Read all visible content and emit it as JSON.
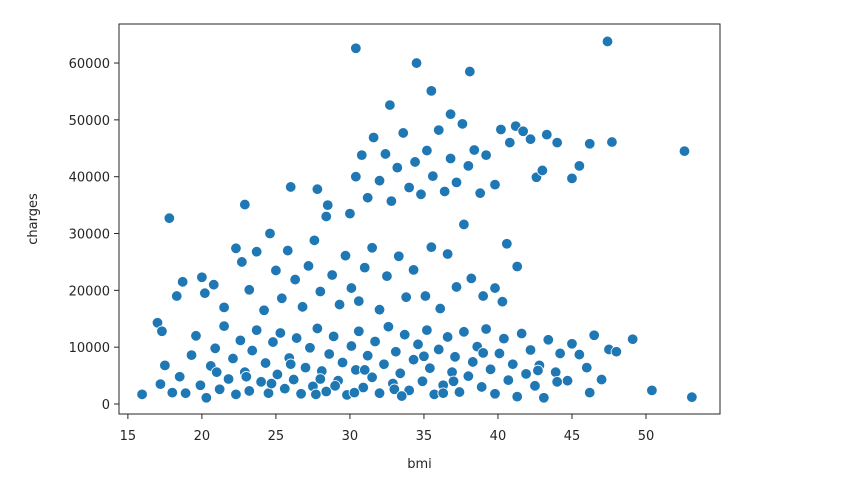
{
  "chart_data": {
    "type": "scatter",
    "xlabel": "bmi",
    "ylabel": "charges",
    "xlim": [
      14.4,
      55.0
    ],
    "ylim": [
      -1760,
      66870
    ],
    "xticks": [
      15,
      20,
      25,
      30,
      35,
      40,
      45,
      50
    ],
    "yticks": [
      0,
      10000,
      20000,
      30000,
      40000,
      50000,
      60000
    ],
    "grid": false,
    "series": [
      {
        "color": "#1f77b4",
        "x": [
          17.2,
          17.5,
          18.0,
          18.5,
          18.9,
          19.3,
          19.6,
          19.9,
          20.3,
          20.6,
          20.9,
          21.2,
          21.5,
          21.8,
          22.1,
          22.3,
          22.6,
          22.9,
          23.2,
          23.4,
          23.7,
          24.0,
          24.3,
          24.5,
          24.8,
          25.1,
          25.3,
          25.6,
          25.9,
          26.2,
          26.4,
          26.7,
          27.0,
          27.3,
          27.5,
          27.8,
          28.1,
          28.4,
          28.6,
          28.9,
          29.2,
          29.5,
          29.8,
          30.1,
          30.4,
          30.6,
          30.9,
          31.2,
          31.5,
          31.7,
          32.0,
          32.3,
          32.6,
          32.9,
          33.1,
          33.4,
          33.7,
          34.0,
          34.3,
          34.6,
          34.9,
          35.2,
          35.4,
          35.7,
          36.0,
          36.3,
          36.6,
          36.9,
          37.1,
          37.4,
          37.7,
          38.0,
          38.3,
          38.6,
          38.9,
          39.2,
          39.5,
          39.8,
          40.1,
          40.4,
          40.7,
          41.0,
          41.3,
          41.6,
          41.9,
          42.2,
          42.5,
          42.8,
          43.1,
          43.4,
          43.9,
          44.2,
          44.7,
          45.0,
          45.5,
          46.0,
          46.2,
          46.5,
          47.0,
          47.5,
          48.0,
          42.7,
          44.0,
          23.0,
          26.0,
          29.0,
          31.0,
          33.0,
          35.0,
          37.0,
          39.0,
          27.7,
          30.3,
          33.5,
          36.3,
          21.0,
          24.7,
          28.0,
          17.8,
          18.3,
          18.7,
          20.0,
          20.2,
          20.8,
          21.5,
          22.3,
          22.7,
          23.2,
          23.7,
          24.2,
          24.6,
          25.0,
          25.4,
          25.8,
          26.3,
          26.8,
          27.2,
          27.6,
          28.0,
          28.4,
          28.8,
          29.3,
          29.7,
          30.1,
          30.6,
          31.0,
          31.5,
          32.0,
          32.5,
          33.3,
          33.8,
          34.3,
          35.1,
          35.5,
          36.1,
          36.6,
          37.2,
          37.7,
          38.2,
          39.0,
          39.8,
          40.6,
          41.3,
          40.3,
          26.0,
          27.8,
          28.5,
          30.0,
          30.4,
          30.8,
          31.2,
          31.6,
          32.0,
          32.4,
          32.8,
          33.2,
          33.6,
          34.0,
          34.4,
          34.8,
          35.2,
          35.6,
          36.0,
          36.4,
          36.8,
          37.2,
          37.6,
          38.0,
          38.4,
          38.8,
          39.2,
          39.8,
          40.2,
          40.8,
          41.2,
          41.7,
          42.2,
          42.6,
          43.0,
          43.3,
          44.0,
          45.0,
          45.5,
          46.2,
          47.7,
          52.6,
          30.4,
          34.5,
          35.5,
          38.1,
          47.4,
          32.7,
          36.8,
          22.9,
          15.96,
          17.0,
          17.3,
          53.1,
          50.4,
          49.1
        ],
        "y": [
          3500,
          6800,
          2000,
          4800,
          1900,
          8600,
          12000,
          3300,
          1100,
          6700,
          9800,
          2600,
          13700,
          4400,
          8000,
          1700,
          11200,
          5600,
          2300,
          9400,
          13000,
          3900,
          7200,
          1900,
          10900,
          5200,
          12500,
          2700,
          8100,
          4300,
          11600,
          1800,
          6400,
          9900,
          3100,
          13300,
          5800,
          2200,
          8800,
          11900,
          4100,
          7300,
          1600,
          10200,
          6000,
          12800,
          2900,
          8500,
          4700,
          11000,
          1900,
          7000,
          13600,
          3600,
          9200,
          5400,
          12200,
          2400,
          7800,
          10500,
          4000,
          13000,
          6300,
          1700,
          9600,
          3300,
          11800,
          5600,
          8300,
          2100,
          12700,
          4900,
          7400,
          10100,
          3000,
          13200,
          6100,
          1800,
          8900,
          11500,
          4200,
          7000,
          1300,
          12400,
          5300,
          9500,
          3200,
          6800,
          1100,
          11300,
          5600,
          8900,
          4100,
          10600,
          8700,
          6400,
          2000,
          12100,
          4300,
          9600,
          9200,
          5900,
          3900,
          4800,
          7000,
          3200,
          6000,
          2600,
          8400,
          4000,
          9000,
          1700,
          2000,
          1400,
          1900,
          5600,
          3600,
          4400,
          32700,
          19000,
          21500,
          22300,
          19500,
          21000,
          17000,
          27400,
          25000,
          20100,
          26800,
          16500,
          30000,
          23500,
          18600,
          27000,
          21900,
          17100,
          24300,
          28800,
          19800,
          33000,
          22700,
          17500,
          26100,
          20400,
          18100,
          24000,
          27500,
          16600,
          22500,
          26000,
          18800,
          23600,
          19000,
          27600,
          16800,
          26400,
          20600,
          31600,
          22100,
          19000,
          20400,
          28200,
          24200,
          18000,
          38200,
          37800,
          35000,
          33500,
          40000,
          43800,
          36300,
          46900,
          39300,
          44000,
          35700,
          41600,
          47700,
          38100,
          42600,
          36900,
          44600,
          40100,
          48200,
          37400,
          43200,
          39000,
          49300,
          41900,
          44700,
          37100,
          43800,
          38600,
          48300,
          46000,
          48900,
          48000,
          46600,
          39900,
          41100,
          47400,
          46000,
          39700,
          41900,
          45800,
          46100,
          44500,
          62600,
          60000,
          55100,
          58500,
          63800,
          52600,
          51000,
          35100,
          1700,
          14300,
          12800,
          1200,
          2400,
          11400
        ]
      }
    ]
  }
}
